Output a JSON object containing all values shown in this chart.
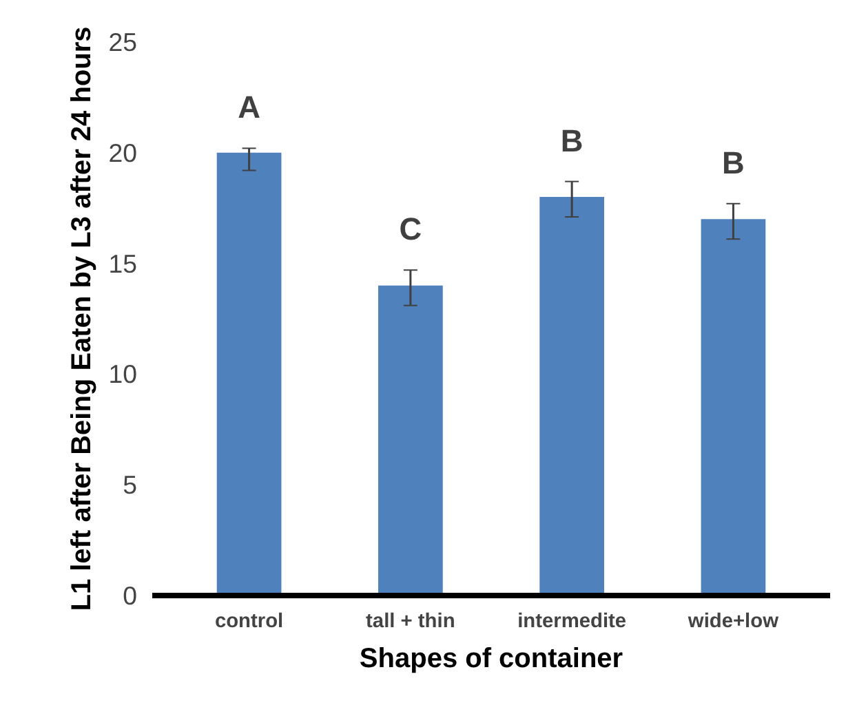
{
  "chart_data": {
    "type": "bar",
    "xlabel": "Shapes of container",
    "ylabel": "L1 left after Being Eaten by L3 after 24 hours",
    "categories": [
      "control",
      "tall + thin",
      "intermedite",
      "wide+low"
    ],
    "values": [
      20,
      14,
      18,
      17
    ],
    "color": "#4f81bd",
    "errors": [
      [
        19.2,
        20.2
      ],
      [
        13.1,
        14.7
      ],
      [
        17.1,
        18.7
      ],
      [
        16.1,
        17.7
      ]
    ],
    "ylim": [
      0,
      25
    ],
    "yticks": [
      0,
      5,
      10,
      15,
      20,
      25
    ],
    "grid": false,
    "annotations": [
      "A",
      "C",
      "B",
      "B"
    ]
  }
}
